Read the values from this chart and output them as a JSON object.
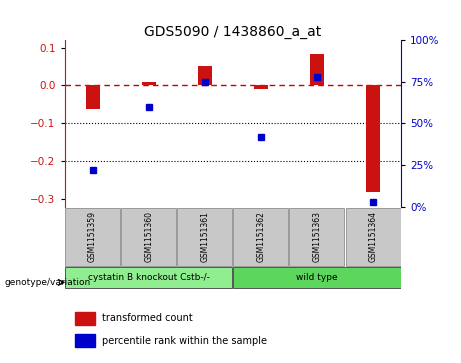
{
  "title": "GDS5090 / 1438860_a_at",
  "samples": [
    "GSM1151359",
    "GSM1151360",
    "GSM1151361",
    "GSM1151362",
    "GSM1151363",
    "GSM1151364"
  ],
  "red_bars": [
    -0.062,
    0.01,
    0.05,
    -0.01,
    0.082,
    -0.28
  ],
  "blue_dots": [
    22,
    60,
    75,
    42,
    78,
    3
  ],
  "ylim_left": [
    -0.32,
    0.12
  ],
  "ylim_right": [
    0,
    100
  ],
  "yticks_left": [
    0.1,
    0.0,
    -0.1,
    -0.2,
    -0.3
  ],
  "yticks_right": [
    100,
    75,
    50,
    25,
    0
  ],
  "groups": [
    {
      "label": "cystatin B knockout Cstb-/-",
      "samples": [
        0,
        1,
        2
      ],
      "color": "#90ee90"
    },
    {
      "label": "wild type",
      "samples": [
        3,
        4,
        5
      ],
      "color": "#5cd65c"
    }
  ],
  "bar_color": "#cc1111",
  "dot_color": "#0000cc",
  "hline_color": "#cc0000",
  "dotted_line_color": "#000000",
  "bg_color": "#ffffff",
  "plot_bg": "#ffffff",
  "sample_box_color": "#c8c8c8",
  "legend_red_label": "transformed count",
  "legend_blue_label": "percentile rank within the sample",
  "genotype_label": "genotype/variation"
}
